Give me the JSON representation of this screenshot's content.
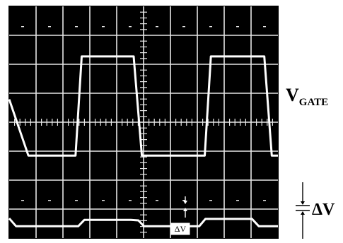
{
  "chart_data": {
    "type": "line",
    "grid": true,
    "grid_divisions": {
      "x": 10,
      "y": 8
    },
    "axis_minor_ticks_per_division": 5,
    "colors": {
      "background": "#000000",
      "grid": "#e6e6e6",
      "trace": "#ffffff"
    },
    "series": [
      {
        "name": "VGATE",
        "label_main": "V",
        "label_sub": "GATE",
        "x": [
          0.0,
          0.28,
          0.97,
          1.06,
          1.32,
          1.82,
          1.94,
          2.22,
          2.86,
          2.95,
          3.23,
          3.73,
          3.84,
          3.93
        ],
        "y": [
          1.94,
          0.0,
          0.0,
          3.42,
          3.42,
          3.42,
          0.0,
          0.0,
          0.0,
          3.42,
          3.42,
          3.42,
          0.0,
          0.0
        ]
      },
      {
        "name": "ΔV",
        "x": [
          0.0,
          0.1,
          1.01,
          1.1,
          1.78,
          1.89,
          1.97,
          2.78,
          2.87,
          3.55,
          3.65,
          3.93
        ],
        "y": [
          0.4,
          0.13,
          0.13,
          0.35,
          0.35,
          0.33,
          0.13,
          0.13,
          0.38,
          0.38,
          0.13,
          0.13
        ]
      }
    ],
    "annotations": [
      {
        "text": "ΔV",
        "role": "inset"
      },
      {
        "text": "ΔV",
        "role": "side-label"
      }
    ]
  }
}
